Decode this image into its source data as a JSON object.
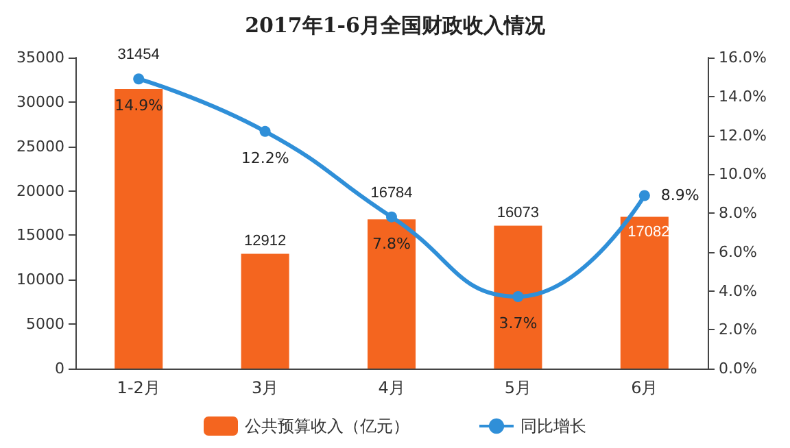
{
  "chart_data": {
    "type": "bar",
    "title": "2017年1-6月全国财政收入情况",
    "categories": [
      "1-2月",
      "3月",
      "4月",
      "5月",
      "6月"
    ],
    "series": [
      {
        "name": "公共预算收入（亿元）",
        "color": "#f4651f",
        "values": [
          31454,
          12912,
          16784,
          16073,
          17082
        ],
        "value_labels": [
          "31454",
          "12912",
          "16784",
          "16073",
          "17082"
        ]
      },
      {
        "name": "同比增长",
        "type": "line",
        "axis": "y2",
        "color": "#2f8fd8",
        "values": [
          14.9,
          12.2,
          7.8,
          3.7,
          8.9
        ],
        "value_labels": [
          "14.9%",
          "12.2%",
          "7.8%",
          "3.7%",
          "8.9%"
        ],
        "marker": "circle"
      }
    ],
    "ylim": [
      0,
      35000
    ],
    "yticks": [
      0,
      5000,
      10000,
      15000,
      20000,
      25000,
      30000,
      35000
    ],
    "y2lim": [
      0,
      16
    ],
    "y2ticks": [
      {
        "value": 0,
        "label": "0.0%"
      },
      {
        "value": 2,
        "label": "2.0%"
      },
      {
        "value": 4,
        "label": "4.0%"
      },
      {
        "value": 6,
        "label": "6.0%"
      },
      {
        "value": 8,
        "label": "8.0%"
      },
      {
        "value": 10,
        "label": "10.0%"
      },
      {
        "value": 12,
        "label": "12.0%"
      },
      {
        "value": 14,
        "label": "14.0%"
      },
      {
        "value": 16,
        "label": "16.0%"
      }
    ],
    "grid": false,
    "legend": "bottom"
  }
}
